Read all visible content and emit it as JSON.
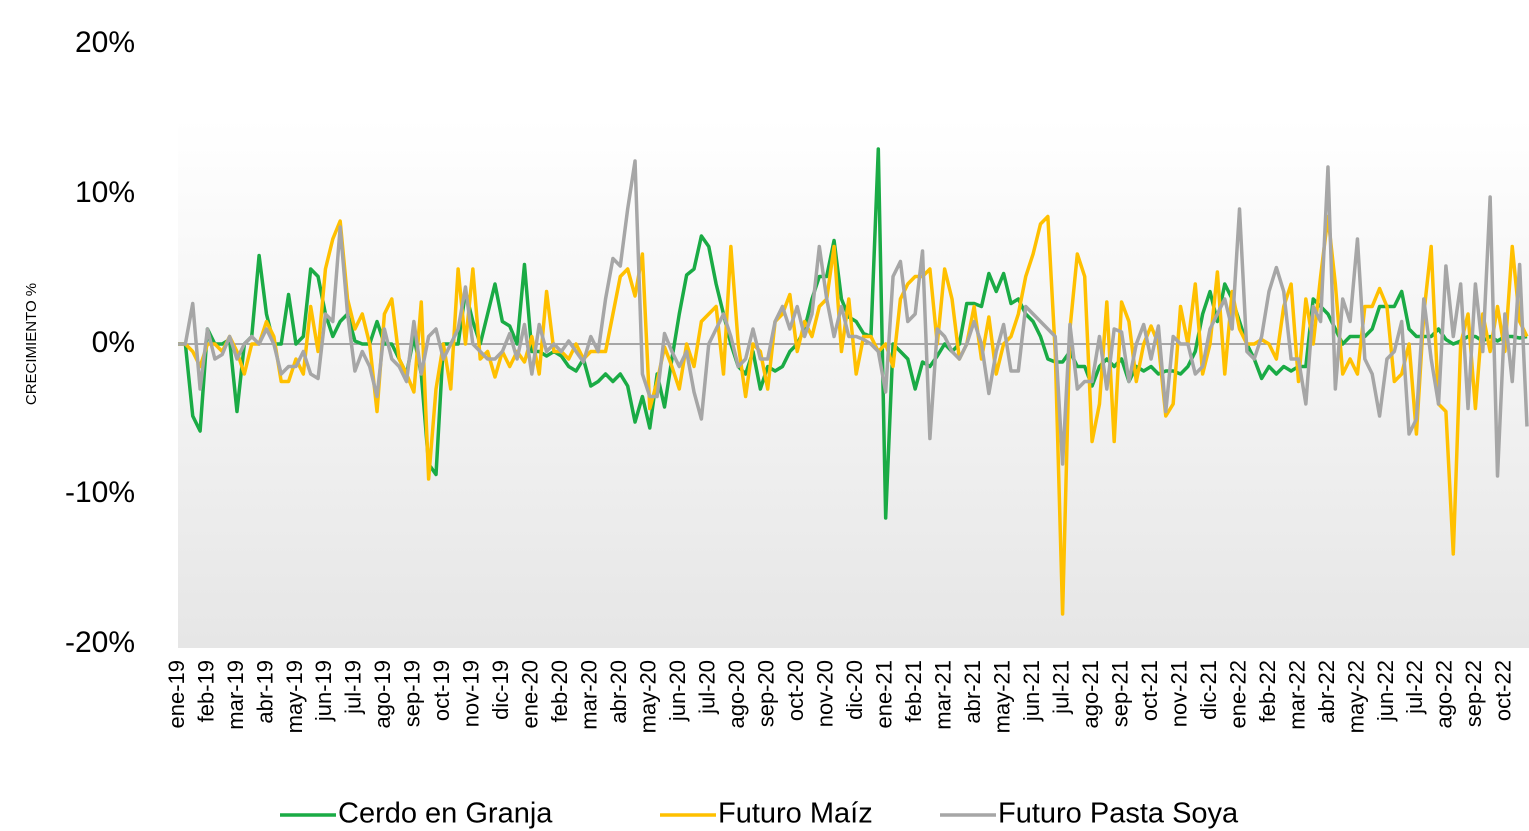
{
  "chart_data": {
    "type": "line",
    "y_axis_label": "CRECIMIENTO %",
    "ylim": [
      -20,
      20
    ],
    "yticks": [
      {
        "value": -20,
        "label": "-20%"
      },
      {
        "value": -10,
        "label": "-10%"
      },
      {
        "value": 0,
        "label": "0%"
      },
      {
        "value": 10,
        "label": "10%"
      },
      {
        "value": 20,
        "label": "20%"
      }
    ],
    "legend": "bottom",
    "categories": [
      "ene-19",
      null,
      null,
      null,
      "feb-19",
      null,
      null,
      null,
      "mar-19",
      null,
      null,
      null,
      "abr-19",
      null,
      null,
      null,
      "may-19",
      null,
      null,
      null,
      "jun-19",
      null,
      null,
      null,
      "jul-19",
      null,
      null,
      null,
      "ago-19",
      null,
      null,
      null,
      "sep-19",
      null,
      null,
      null,
      "oct-19",
      null,
      null,
      null,
      "nov-19",
      null,
      null,
      null,
      "dic-19",
      null,
      null,
      null,
      "ene-20",
      null,
      null,
      null,
      "feb-20",
      null,
      null,
      null,
      "mar-20",
      null,
      null,
      null,
      "abr-20",
      null,
      null,
      null,
      "may-20",
      null,
      null,
      null,
      "jun-20",
      null,
      null,
      null,
      "jul-20",
      null,
      null,
      null,
      "ago-20",
      null,
      null,
      null,
      "sep-20",
      null,
      null,
      null,
      "oct-20",
      null,
      null,
      null,
      "nov-20",
      null,
      null,
      null,
      "dic-20",
      null,
      null,
      null,
      "ene-21",
      null,
      null,
      null,
      "feb-21",
      null,
      null,
      null,
      "mar-21",
      null,
      null,
      null,
      "abr-21",
      null,
      null,
      null,
      "may-21",
      null,
      null,
      null,
      "jun-21",
      null,
      null,
      null,
      "jul-21",
      null,
      null,
      null,
      "ago-21",
      null,
      null,
      null,
      "sep-21",
      null,
      null,
      null,
      "oct-21",
      null,
      null,
      null,
      "nov-21",
      null,
      null,
      null,
      "dic-21",
      null,
      null,
      null,
      "ene-22",
      null,
      null,
      null,
      "feb-22",
      null,
      null,
      null,
      "mar-22",
      null,
      null,
      null,
      "abr-22",
      null,
      null,
      null,
      "may-22",
      null,
      null,
      null,
      "jun-22",
      null,
      null,
      null,
      "jul-22",
      null,
      null,
      null,
      "ago-22",
      null,
      null,
      null,
      "sep-22",
      null,
      null,
      null,
      "oct-22",
      null,
      null,
      null
    ],
    "series": [
      {
        "name": "Cerdo en Granja",
        "color": "#1aab45",
        "values": [
          0,
          0,
          -4.8,
          -5.8,
          1,
          0,
          0,
          0.3,
          -4.5,
          0,
          0.5,
          5.9,
          2,
          0,
          0,
          3.3,
          0,
          0.5,
          5,
          4.5,
          2,
          0.5,
          1.5,
          2,
          0.2,
          0,
          0,
          1.5,
          0,
          0,
          -1,
          -2,
          0.5,
          -2,
          -8,
          -8.7,
          0,
          0,
          0,
          3.5,
          1.5,
          0,
          2,
          4,
          1.5,
          1.2,
          0,
          5.3,
          -0.5,
          -0.5,
          -0.8,
          -0.5,
          -0.8,
          -1.5,
          -1.8,
          -1,
          -2.8,
          -2.5,
          -2,
          -2.5,
          -2,
          -2.8,
          -5.2,
          -3.5,
          -5.6,
          -2,
          -4.2,
          -1,
          2,
          4.6,
          5,
          7.2,
          6.5,
          4,
          2,
          0,
          -1.5,
          -2,
          -0.5,
          -3,
          -1.5,
          -1.8,
          -1.5,
          -0.5,
          0,
          1,
          3,
          4.5,
          4.5,
          6.9,
          3,
          1.8,
          1.5,
          0.7,
          0.5,
          13,
          -11.6,
          0,
          -0.5,
          -1,
          -3,
          -1.2,
          -1.5,
          -0.8,
          0,
          -0.5,
          0,
          2.7,
          2.7,
          2.5,
          4.7,
          3.5,
          4.7,
          2.7,
          3,
          2,
          1.5,
          0.5,
          -1,
          -1.2,
          -1.2,
          -0.5,
          -1.5,
          -1.5,
          -2.8,
          -1.5,
          -1,
          -1.5,
          -1,
          -2.5,
          -1.5,
          -1.8,
          -1.5,
          -2,
          -1.8,
          -1.8,
          -2,
          -1.5,
          -0.5,
          2,
          3.5,
          1.5,
          4,
          3,
          1.5,
          0,
          -1,
          -2.3,
          -1.5,
          -2,
          -1.5,
          -1.8,
          -1.5,
          -1.5,
          3,
          2.5,
          2,
          1,
          0,
          0.5,
          0.5,
          0.5,
          1,
          2.5,
          2.5,
          2.5,
          3.5,
          1,
          0.5,
          0.5,
          0.5,
          1,
          0.3,
          0,
          0.2,
          0.5,
          0.5,
          0.2,
          0.5,
          0.2,
          0.5,
          0.5,
          0.4,
          0.5
        ]
      },
      {
        "name": "Futuro Maíz",
        "color": "#ffc000",
        "values": [
          0,
          0,
          -0.5,
          -1.5,
          0,
          0,
          -0.5,
          0.5,
          -0.5,
          -2,
          0,
          0,
          1.5,
          0.5,
          -2.5,
          -2.5,
          -1,
          -2,
          2.5,
          -0.5,
          5,
          7,
          8.2,
          3,
          1,
          2,
          0,
          -4.5,
          2,
          3,
          -1,
          -2,
          -3.2,
          2.8,
          -9,
          -3,
          0,
          -3,
          5,
          0,
          5,
          -1,
          -0.5,
          -2.2,
          -0.5,
          -1.5,
          -0.5,
          -1.2,
          0.5,
          -2,
          3.5,
          -0.5,
          -0.5,
          -1,
          0,
          -1,
          -0.5,
          -0.5,
          -0.5,
          2,
          4.5,
          5,
          3.2,
          6,
          -4.3,
          -2.5,
          -0.2,
          -1.5,
          -3,
          0,
          -1.5,
          1.5,
          2,
          2.5,
          -2,
          6.5,
          0,
          -3.5,
          0,
          -0.5,
          -3,
          1.5,
          2,
          3.3,
          -0.5,
          1.5,
          0.5,
          2.5,
          3,
          6.5,
          -0.5,
          3,
          -2,
          0.5,
          0.5,
          -0.5,
          0,
          -1.5,
          3,
          4,
          4.5,
          4.5,
          5,
          0,
          5,
          3,
          -1,
          0,
          2.5,
          -1,
          1.8,
          -2,
          0,
          0.5,
          2,
          4.5,
          6,
          8,
          8.5,
          -0.5,
          -18,
          1,
          6,
          4.5,
          -6.5,
          -4,
          2.8,
          -6.5,
          2.8,
          1.5,
          -2.5,
          0,
          1.2,
          0,
          -4.8,
          -4,
          2.5,
          0,
          4,
          -2,
          0,
          4.8,
          -2,
          3.5,
          1,
          0,
          0,
          0.3,
          0,
          -1,
          2.5,
          4,
          -2.5,
          3,
          0,
          4.5,
          8.5,
          4,
          -2,
          -1,
          -2,
          2.5,
          2.5,
          3.7,
          2.5,
          -2.5,
          -2,
          0,
          -6,
          2,
          6.5,
          -4,
          -4.5,
          -14,
          0,
          2,
          -4.3,
          2,
          -0.5,
          2.5,
          -0.5,
          6.5,
          1.5,
          0.5
        ]
      },
      {
        "name": "Futuro Pasta Soya",
        "color": "#a6a6a6",
        "values": [
          0,
          0,
          2.7,
          -3,
          1,
          -1,
          -0.7,
          0.5,
          -1,
          0,
          0.5,
          0,
          1,
          0,
          -2,
          -1.5,
          -1.5,
          -0.5,
          -2,
          -2.3,
          2,
          1.5,
          7.8,
          2,
          -1.8,
          -0.5,
          -1.5,
          -3.5,
          1,
          -1,
          -1.5,
          -2.5,
          1.5,
          -2,
          0.5,
          1,
          -1,
          0,
          1,
          3.8,
          0,
          -0.5,
          -1,
          -1,
          -0.5,
          0.7,
          -1,
          1.3,
          -2,
          1.3,
          -0.5,
          0,
          -0.5,
          0.2,
          -0.5,
          -1.2,
          0.5,
          -0.5,
          3,
          5.7,
          5.2,
          9,
          12.2,
          -2,
          -3.5,
          -3.5,
          0.7,
          -0.5,
          -1.5,
          -0.5,
          -3.2,
          -5,
          0,
          1,
          2,
          0.5,
          -1.5,
          -1,
          1,
          -1,
          -1,
          1.5,
          2.5,
          1,
          2.5,
          0.5,
          2,
          6.5,
          3,
          0.5,
          2.5,
          0.5,
          0.5,
          0.3,
          0,
          -0.5,
          -3.2,
          4.5,
          5.5,
          1.5,
          2,
          6.2,
          -6.3,
          1,
          0.5,
          -0.5,
          -1,
          0,
          1.5,
          0,
          -3.3,
          -0.5,
          1.3,
          -1.8,
          -1.8,
          2.5,
          2,
          1.5,
          1,
          0.5,
          -8,
          1.3,
          -3,
          -2.5,
          -2.5,
          0.5,
          -3,
          1,
          0.8,
          -2.5,
          0,
          1.3,
          -1,
          1.2,
          -4.5,
          0.5,
          0,
          0,
          -2,
          -1.5,
          1,
          2,
          3,
          1,
          9,
          -0.5,
          -1,
          0.5,
          3.5,
          5.1,
          3.5,
          -1,
          -1,
          -4,
          2.5,
          1.5,
          11.8,
          -3,
          3,
          1.5,
          7,
          -1,
          -2,
          -4.8,
          -1,
          -0.5,
          1.5,
          -6,
          -5,
          3,
          -1,
          -4,
          5.2,
          0.5,
          4,
          -4.3,
          4,
          -0.5,
          9.8,
          -8.8,
          2,
          -2.5,
          5.3,
          -5.5
        ]
      }
    ]
  }
}
